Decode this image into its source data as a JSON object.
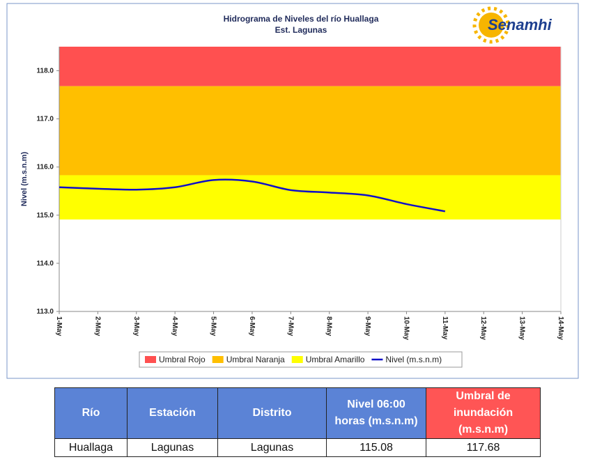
{
  "chart_data": {
    "type": "line",
    "title": "Hidrograma de Niveles del río Huallaga",
    "subtitle": "Est. Lagunas",
    "logo": "Senamhi",
    "ylabel": "Nivel (m.s.n.m)",
    "categories": [
      "1-May",
      "2-May",
      "3-May",
      "4-May",
      "5-May",
      "6-May",
      "7-May",
      "8-May",
      "9-May",
      "10-May",
      "11-May",
      "12-May",
      "13-May",
      "14-May"
    ],
    "series": [
      {
        "name": "Nivel (m.s.n.m)",
        "color": "#1010c8",
        "values": [
          115.58,
          115.55,
          115.53,
          115.58,
          115.73,
          115.7,
          115.52,
          115.47,
          115.41,
          115.23,
          115.08,
          null,
          null,
          null
        ]
      }
    ],
    "thresholds": [
      {
        "name": "Umbral Rojo",
        "color": "#ff5050",
        "value": 117.68
      },
      {
        "name": "Umbral Naranja",
        "color": "#ffbf00",
        "value": 115.83
      },
      {
        "name": "Umbral Amarillo",
        "color": "#ffff00",
        "value": 114.91
      }
    ],
    "ylim": [
      113,
      118.5
    ],
    "yticks": [
      {
        "value": 113,
        "label": "113.0"
      },
      {
        "value": 114,
        "label": "114.0"
      },
      {
        "value": 115,
        "label": "115.0"
      },
      {
        "value": 116,
        "label": "116.0"
      },
      {
        "value": 117,
        "label": "117.0"
      },
      {
        "value": 118,
        "label": "118.0"
      }
    ],
    "grid": false
  },
  "table": {
    "headers": [
      "Río",
      "Estación",
      "Distrito",
      "Nivel 06:00 horas (m.s.n.m)",
      "Umbral de inundación (m.s.n.m)"
    ],
    "rows": [
      [
        "Huallaga",
        "Lagunas",
        "Lagunas",
        115.08,
        117.68
      ]
    ]
  }
}
